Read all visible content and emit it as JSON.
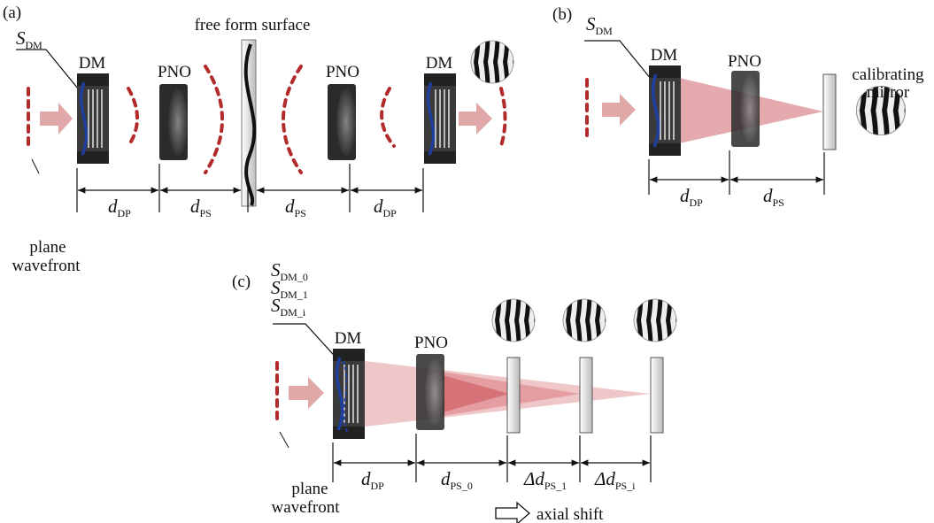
{
  "panel_a": {
    "label": "(a)",
    "s_dm": {
      "main": "S",
      "sub": "DM"
    },
    "dm_left": "DM",
    "pno_left": "PNO",
    "free_form": "free form surface",
    "pno_right": "PNO",
    "dm_right": "DM",
    "input": [
      "plane",
      "wavefront"
    ],
    "distances": [
      {
        "main": "d",
        "sub": "DP"
      },
      {
        "main": "d",
        "sub": "PS"
      },
      {
        "main": "d",
        "sub": "PS"
      },
      {
        "main": "d",
        "sub": "DP"
      }
    ]
  },
  "panel_b": {
    "label": "(b)",
    "s_dm": {
      "main": "S",
      "sub": "DM"
    },
    "dm": "DM",
    "pno": "PNO",
    "mirror": [
      "calibrating",
      "mirror"
    ],
    "distances": [
      {
        "main": "d",
        "sub": "DP"
      },
      {
        "main": "d",
        "sub": "PS"
      }
    ]
  },
  "panel_c": {
    "label": "(c)",
    "s_dm": [
      {
        "main": "S",
        "sub": "DM_0"
      },
      {
        "main": "S",
        "sub": "DM_1"
      },
      {
        "main": "S",
        "sub": "DM_i"
      }
    ],
    "dm": "DM",
    "pno": "PNO",
    "input": [
      "plane",
      "wavefront"
    ],
    "distances": [
      {
        "main": "d",
        "sub": "DP"
      },
      {
        "main": "d",
        "sub": "PS_0"
      },
      {
        "main": "Δd",
        "sub": "PS_1"
      },
      {
        "main": "Δd",
        "sub": "PS_i"
      }
    ],
    "legend": "axial shift"
  }
}
